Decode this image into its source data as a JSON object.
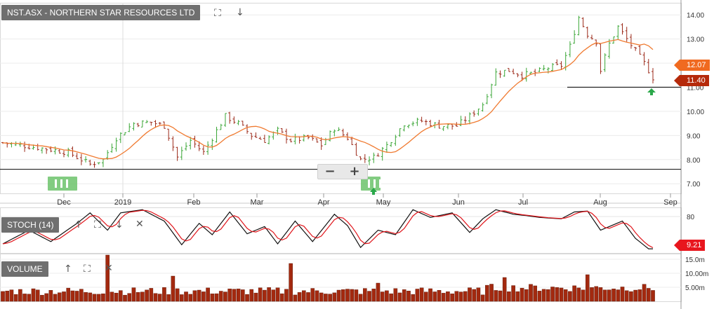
{
  "main_panel": {
    "label": "NST.ASX - NORTHERN STAR RESOURCES LTD",
    "expand_icon": "expand-icon",
    "move_down_icon": "arrow-down-icon"
  },
  "stoch_panel": {
    "label": "STOCH (14)",
    "tag_value": "9.21"
  },
  "volume_panel": {
    "label": "VOLUME"
  },
  "zoom": {
    "out_label": "−",
    "in_label": "+"
  },
  "price_tags": {
    "moving_average": "12.07",
    "last_close": "11.40"
  },
  "chart_data": {
    "type": "candlestick",
    "series": [
      {
        "name": "",
        "kind": "ohlc-close"
      },
      {
        "name": "",
        "kind": "moving-average"
      }
    ],
    "x": {
      "ticks": [
        "Dec",
        "2019",
        "Feb",
        "Mar",
        "Apr",
        "May",
        "Jun",
        "Jul",
        "Aug",
        "Sep"
      ]
    },
    "price_axis": {
      "ticks": [
        7.0,
        8.0,
        9.0,
        10.0,
        11.0,
        12.0,
        13.0,
        14.0
      ],
      "ylim": [
        6.6,
        14.5
      ]
    },
    "stoch_axis": {
      "ticks": [
        80
      ],
      "ylim": [
        0,
        100
      ],
      "current": 9.21
    },
    "volume_axis": {
      "ticks": [
        "5.00m",
        "10.00m",
        "15.0m"
      ],
      "ylim": [
        0,
        17
      ]
    },
    "horizontal_lines": [
      7.6,
      11.0
    ],
    "price_anchors": [
      [
        0,
        8.7
      ],
      [
        8,
        8.5
      ],
      [
        15,
        8.3
      ],
      [
        20,
        7.8
      ],
      [
        23,
        8.0
      ],
      [
        26,
        8.9
      ],
      [
        30,
        9.5
      ],
      [
        34,
        9.55
      ],
      [
        37,
        9.4
      ],
      [
        40,
        8.1
      ],
      [
        43,
        8.8
      ],
      [
        46,
        8.3
      ],
      [
        48,
        8.9
      ],
      [
        51,
        9.8
      ],
      [
        54,
        9.5
      ],
      [
        57,
        9.0
      ],
      [
        60,
        8.8
      ],
      [
        63,
        9.2
      ],
      [
        66,
        8.8
      ],
      [
        70,
        8.9
      ],
      [
        73,
        8.6
      ],
      [
        76,
        9.3
      ],
      [
        79,
        8.9
      ],
      [
        82,
        8.0
      ],
      [
        85,
        8.1
      ],
      [
        88,
        8.6
      ],
      [
        92,
        9.5
      ],
      [
        96,
        9.6
      ],
      [
        100,
        9.4
      ],
      [
        104,
        9.4
      ],
      [
        107,
        9.8
      ],
      [
        110,
        10.3
      ],
      [
        113,
        11.6
      ],
      [
        116,
        11.7
      ],
      [
        119,
        11.5
      ],
      [
        122,
        11.6
      ],
      [
        125,
        11.8
      ],
      [
        128,
        11.9
      ],
      [
        130,
        12.7
      ],
      [
        132,
        13.9
      ],
      [
        134,
        13.2
      ],
      [
        136,
        12.9
      ],
      [
        137,
        11.7
      ],
      [
        139,
        12.8
      ],
      [
        141,
        13.5
      ],
      [
        143,
        13.0
      ],
      [
        145,
        12.5
      ],
      [
        147,
        12.0
      ],
      [
        149,
        11.4
      ]
    ],
    "stoch_anchors": [
      [
        0,
        20
      ],
      [
        6,
        50
      ],
      [
        11,
        25
      ],
      [
        17,
        65
      ],
      [
        20,
        88
      ],
      [
        24,
        50
      ],
      [
        27,
        88
      ],
      [
        32,
        95
      ],
      [
        37,
        70
      ],
      [
        41,
        18
      ],
      [
        45,
        65
      ],
      [
        48,
        40
      ],
      [
        52,
        90
      ],
      [
        56,
        42
      ],
      [
        60,
        58
      ],
      [
        63,
        20
      ],
      [
        67,
        70
      ],
      [
        71,
        25
      ],
      [
        76,
        85
      ],
      [
        79,
        60
      ],
      [
        82,
        12
      ],
      [
        86,
        50
      ],
      [
        90,
        40
      ],
      [
        94,
        95
      ],
      [
        98,
        78
      ],
      [
        103,
        88
      ],
      [
        107,
        45
      ],
      [
        110,
        75
      ],
      [
        113,
        95
      ],
      [
        117,
        85
      ],
      [
        120,
        82
      ],
      [
        123,
        78
      ],
      [
        128,
        75
      ],
      [
        131,
        90
      ],
      [
        134,
        92
      ],
      [
        137,
        50
      ],
      [
        139,
        58
      ],
      [
        142,
        70
      ],
      [
        145,
        32
      ],
      [
        148,
        9
      ]
    ],
    "volume_spikes": [
      [
        24,
        16.5
      ],
      [
        66,
        13.5
      ],
      [
        39,
        9.0
      ],
      [
        86,
        6.5
      ],
      [
        115,
        8.5
      ],
      [
        134,
        9.5
      ]
    ]
  }
}
